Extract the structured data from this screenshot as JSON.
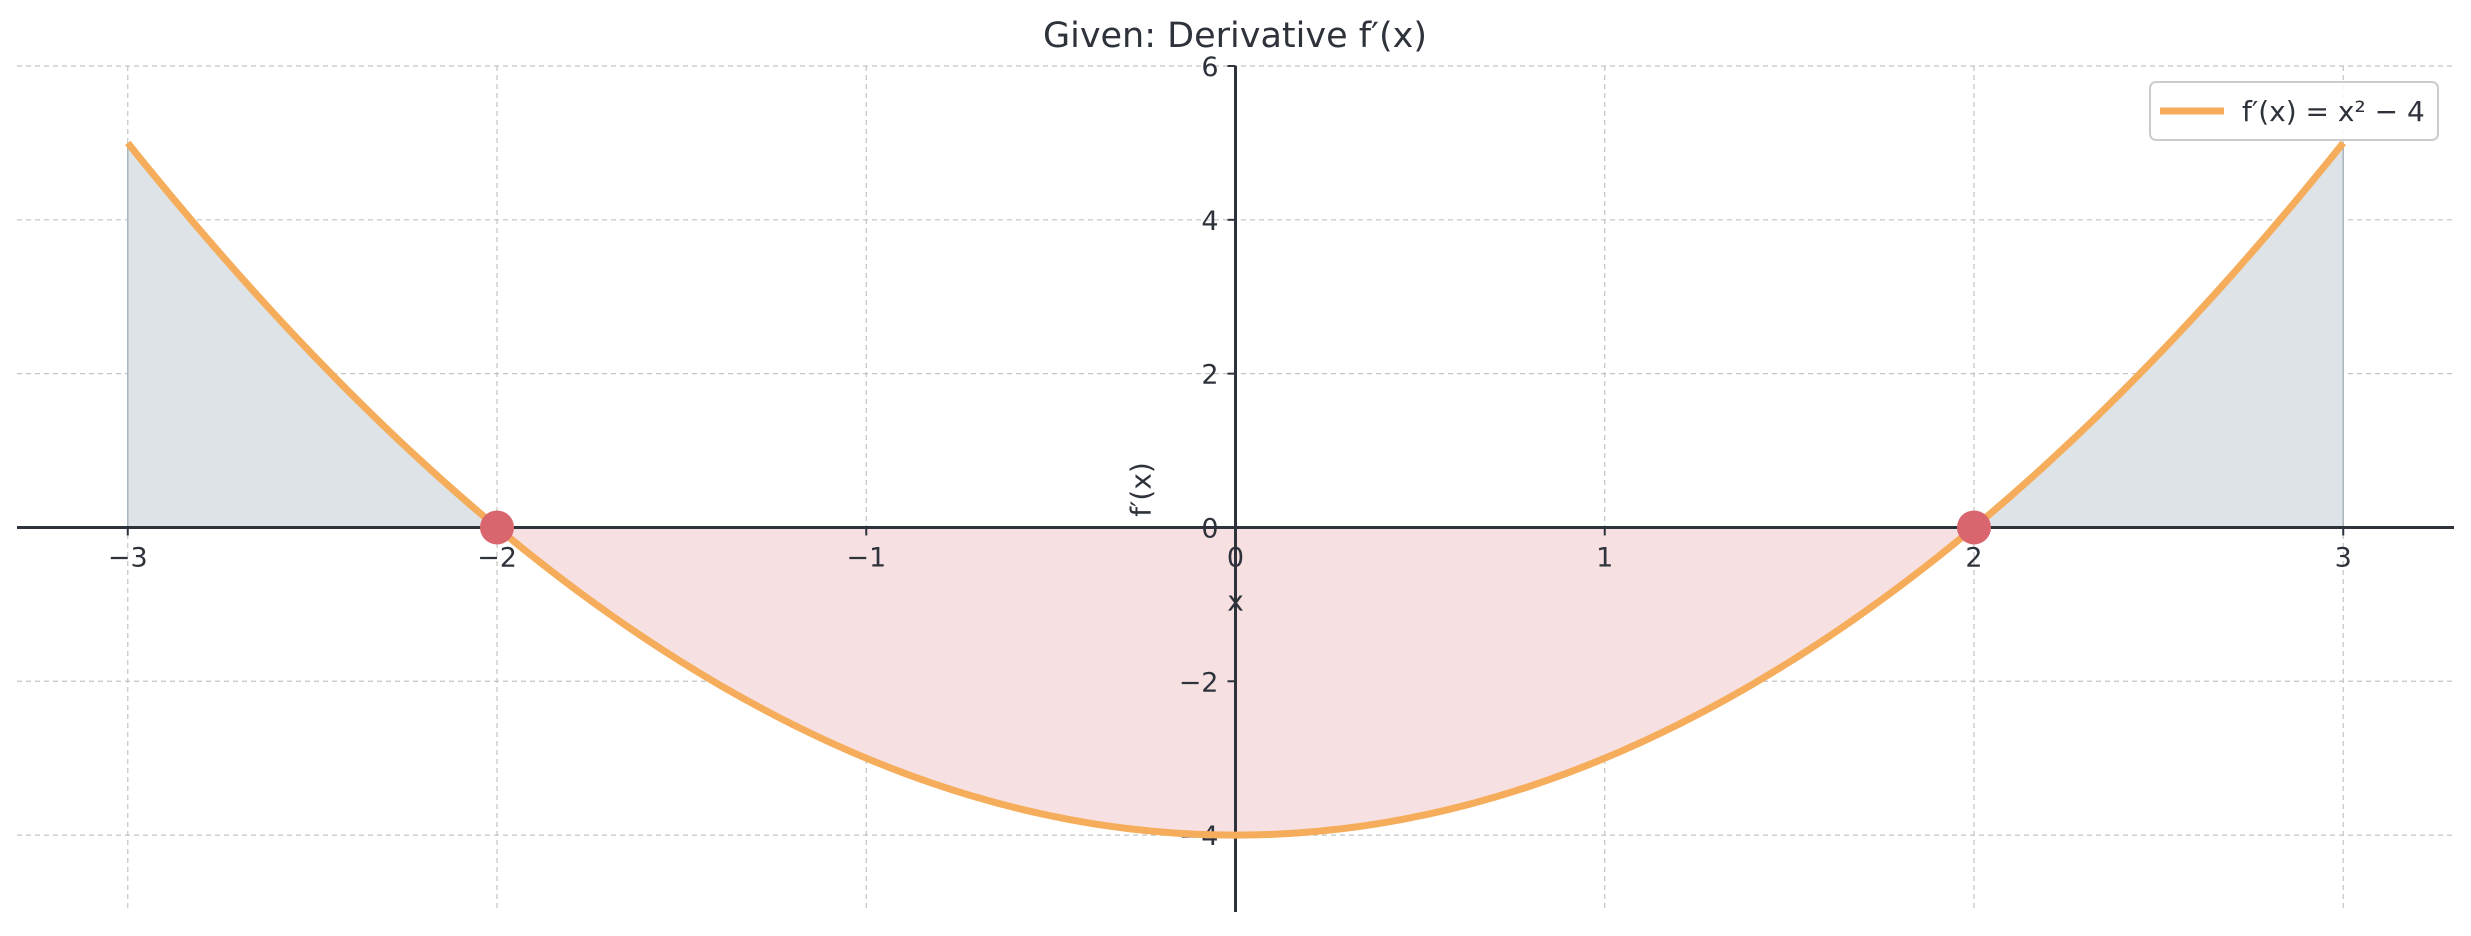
{
  "chart_data": {
    "type": "line",
    "title": "Given: Derivative f′(x)",
    "xlabel": "x",
    "ylabel": "f′(x)",
    "xlim": [
      -3.3,
      3.3
    ],
    "ylim": [
      -5,
      6
    ],
    "xticks": [
      -3,
      -2,
      -1,
      0,
      1,
      2,
      3
    ],
    "yticks": [
      -4,
      -2,
      0,
      2,
      4,
      6
    ],
    "xtick_labels": [
      "−3",
      "−2",
      "−1",
      "0",
      "1",
      "2",
      "3"
    ],
    "ytick_labels": [
      "−4",
      "−2",
      "0",
      "2",
      "4",
      "6"
    ],
    "grid": true,
    "legend_position": "top-right",
    "series": [
      {
        "name": "f′(x) = x² − 4",
        "expression": "x^2 - 4",
        "domain": [
          -3,
          3
        ],
        "x": [
          -3,
          -2.5,
          -2,
          -1.5,
          -1,
          -0.5,
          0,
          0.5,
          1,
          1.5,
          2,
          2.5,
          3
        ],
        "y": [
          5,
          2.25,
          0,
          -1.75,
          -3,
          -3.75,
          -4,
          -3.75,
          -3,
          -1.75,
          0,
          2.25,
          5
        ],
        "color": "#f5ad5b"
      }
    ],
    "shaded_regions": [
      {
        "x_from": -3,
        "x_to": -2,
        "sign": "positive",
        "color": "#dde3e6"
      },
      {
        "x_from": -2,
        "x_to": 2,
        "sign": "negative",
        "color": "#f7e0e1"
      },
      {
        "x_from": 2,
        "x_to": 3,
        "sign": "positive",
        "color": "#dde3e6"
      }
    ],
    "marked_points": [
      {
        "x": -2,
        "y": 0,
        "color": "#d9666f"
      },
      {
        "x": 2,
        "y": 0,
        "color": "#d9666f"
      }
    ]
  }
}
